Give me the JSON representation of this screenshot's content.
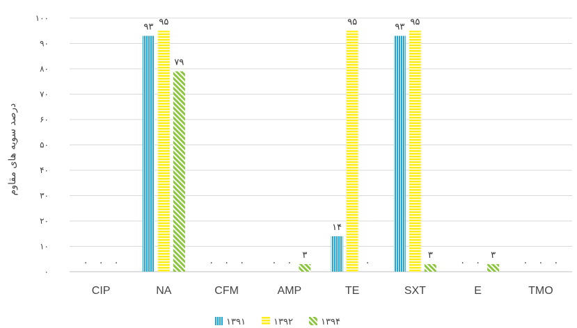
{
  "chart_data": {
    "type": "bar",
    "ylabel": "درصد سویه های مقاوم",
    "ylim": [
      0,
      100
    ],
    "yticks": [
      {
        "value": 0,
        "label": "۰"
      },
      {
        "value": 10,
        "label": "۱۰"
      },
      {
        "value": 20,
        "label": "۲۰"
      },
      {
        "value": 30,
        "label": "۳۰"
      },
      {
        "value": 40,
        "label": "۴۰"
      },
      {
        "value": 50,
        "label": "۵۰"
      },
      {
        "value": 60,
        "label": "۶۰"
      },
      {
        "value": 70,
        "label": "۷۰"
      },
      {
        "value": 80,
        "label": "۸۰"
      },
      {
        "value": 90,
        "label": "۹۰"
      },
      {
        "value": 100,
        "label": "۱۰۰"
      }
    ],
    "categories": [
      "CIP",
      "NA",
      "CFM",
      "AMP",
      "TE",
      "SXT",
      "E",
      "TMO"
    ],
    "series": [
      {
        "name": "۱۳۹۱",
        "color": "#1aa7d9",
        "pattern": "vertical-lines",
        "values": [
          0,
          93,
          0,
          0,
          14,
          93,
          0,
          0
        ],
        "labels": [
          "۰",
          "۹۳",
          "۰",
          "۰",
          "۱۴",
          "۹۳",
          "۰",
          "۰"
        ]
      },
      {
        "name": "۱۳۹۲",
        "color": "#ffee1a",
        "pattern": "horizontal-lines",
        "values": [
          0,
          95,
          0,
          0,
          95,
          95,
          0,
          0
        ],
        "labels": [
          "۰",
          "۹۵",
          "۰",
          "۰",
          "۹۵",
          "۹۵",
          "۰",
          "۰"
        ]
      },
      {
        "name": "۱۳۹۴",
        "color": "#8cc63f",
        "pattern": "diagonal-lines",
        "values": [
          0,
          79,
          0,
          3,
          0,
          3,
          3,
          0
        ],
        "labels": [
          "۰",
          "۷۹",
          "۰",
          "۳",
          "۰",
          "۳",
          "۳",
          "۰"
        ]
      }
    ],
    "grid": true,
    "legend": "bottom-center"
  }
}
